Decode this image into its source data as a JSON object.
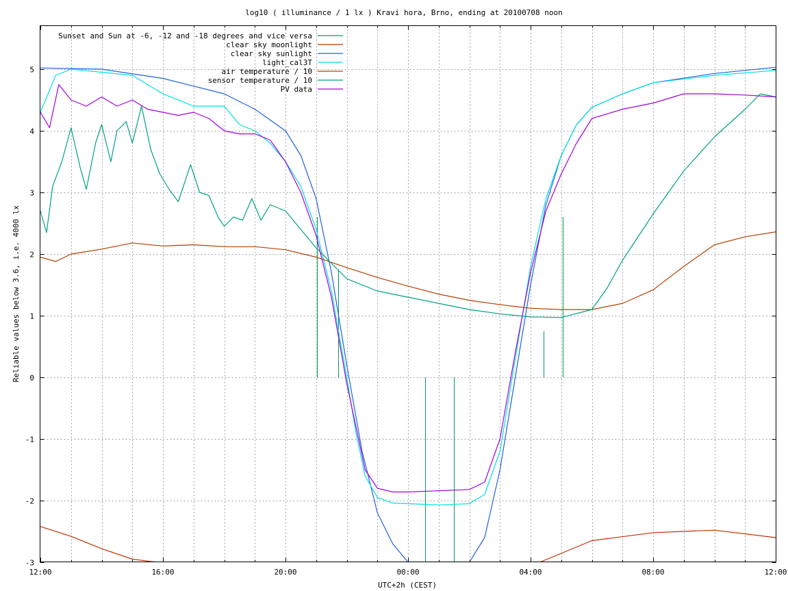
{
  "chart_data": {
    "type": "line",
    "title": "log10 ( illuminance / 1 lx ) Kravi hora, Brno, ending at 20100708 noon",
    "xlabel": "UTC+2h (CEST)",
    "ylabel": "Reliable values below 3.6, i.e. 4000 lx",
    "x_unit": "hours since 12:00 (UTC+2h)",
    "xlim": [
      0,
      24
    ],
    "ylim": [
      -3,
      5.8
    ],
    "grid": true,
    "legend_position": "top-left",
    "x_ticks": [
      {
        "value": 0,
        "label": "12:00"
      },
      {
        "value": 4,
        "label": "16:00"
      },
      {
        "value": 8,
        "label": "20:00"
      },
      {
        "value": 12,
        "label": "00:00"
      },
      {
        "value": 16,
        "label": "04:00"
      },
      {
        "value": 20,
        "label": "08:00"
      },
      {
        "value": 24,
        "label": "12:00"
      }
    ],
    "y_ticks": [
      {
        "value": -3,
        "label": "-3"
      },
      {
        "value": -2,
        "label": "-2"
      },
      {
        "value": -1,
        "label": "-1"
      },
      {
        "value": 0,
        "label": "0"
      },
      {
        "value": 1,
        "label": "1"
      },
      {
        "value": 2,
        "label": "2"
      },
      {
        "value": 3,
        "label": "3"
      },
      {
        "value": 4,
        "label": "4"
      },
      {
        "value": 5,
        "label": "5"
      }
    ],
    "series": [
      {
        "name": "Sunset and Sun at -6, -12 and -18 degrees and vice versa",
        "color": "#00a050",
        "style": "impulse",
        "x": [
          9.03,
          9.72,
          10.72,
          12.55,
          13.5,
          15.32,
          16.42,
          17.05
        ],
        "y": [
          2.6,
          1.75,
          0,
          -3,
          -3,
          0,
          0.75,
          2.6
        ]
      },
      {
        "name": "clear sky moonlight",
        "color": "#c03000",
        "x": [
          0,
          1,
          2,
          3,
          3.8,
          16.3,
          18,
          20,
          22,
          24
        ],
        "y": [
          -2.42,
          -2.58,
          -2.78,
          -2.95,
          -3,
          -3,
          -2.65,
          -2.52,
          -2.48,
          -2.6
        ]
      },
      {
        "name": "clear sky sunlight",
        "color": "#2060e0",
        "x": [
          0,
          2,
          4,
          6,
          7,
          8,
          8.5,
          9,
          9.5,
          10,
          10.5,
          11,
          11.5,
          12,
          14,
          14.5,
          15,
          15.5,
          16,
          16.5,
          17,
          17.5,
          18,
          19,
          20,
          22,
          24
        ],
        "y": [
          5.02,
          5,
          4.85,
          4.6,
          4.35,
          4.0,
          3.6,
          2.9,
          1.7,
          0.2,
          -1.2,
          -2.2,
          -2.7,
          -3,
          -3,
          -2.6,
          -1.5,
          0,
          1.5,
          2.8,
          3.6,
          4.1,
          4.38,
          4.6,
          4.78,
          4.93,
          5.03
        ]
      },
      {
        "name": "light_cal3T",
        "color": "#00e0e0",
        "x": [
          0,
          0.5,
          1,
          2,
          3,
          4,
          5,
          6,
          6.5,
          7,
          7.5,
          8,
          8.5,
          9,
          9.5,
          10,
          10.3,
          10.6,
          11,
          11.5,
          12,
          13,
          14,
          14.5,
          15,
          15.5,
          16,
          16.5,
          17,
          17.5,
          18,
          19,
          20,
          22,
          24
        ],
        "y": [
          4.3,
          4.9,
          5.0,
          4.95,
          4.9,
          4.6,
          4.4,
          4.4,
          4.1,
          4.0,
          3.8,
          3.5,
          3.1,
          2.4,
          1.4,
          0.0,
          -0.9,
          -1.6,
          -1.95,
          -2.04,
          -2.05,
          -2.07,
          -2.05,
          -1.9,
          -1.2,
          0.3,
          1.8,
          2.9,
          3.6,
          4.1,
          4.38,
          4.6,
          4.78,
          4.9,
          4.98
        ]
      },
      {
        "name": "air temperature / 10",
        "color": "#b04000",
        "x": [
          0,
          0.5,
          1,
          2,
          3,
          4,
          5,
          6,
          7,
          8,
          9,
          10,
          11,
          12,
          13,
          14,
          15,
          16,
          17,
          18,
          19,
          20,
          21,
          22,
          23,
          24
        ],
        "y": [
          1.95,
          1.88,
          2.0,
          2.08,
          2.18,
          2.13,
          2.15,
          2.12,
          2.12,
          2.07,
          1.95,
          1.78,
          1.62,
          1.48,
          1.35,
          1.25,
          1.18,
          1.12,
          1.1,
          1.1,
          1.2,
          1.42,
          1.8,
          2.15,
          2.28,
          2.36
        ]
      },
      {
        "name": "sensor temperature / 10",
        "color": "#00a080",
        "x": [
          0,
          0.2,
          0.4,
          0.7,
          1,
          1.3,
          1.5,
          1.8,
          2,
          2.3,
          2.5,
          2.8,
          3,
          3.3,
          3.6,
          3.9,
          4.2,
          4.5,
          4.9,
          5.2,
          5.5,
          5.8,
          6.0,
          6.3,
          6.6,
          6.9,
          7.2,
          7.5,
          8,
          8.5,
          9,
          9.5,
          10,
          11,
          12,
          13,
          14,
          15,
          16,
          17,
          18,
          18.5,
          19,
          20,
          21,
          22,
          23,
          23.5,
          24
        ],
        "y": [
          2.7,
          2.35,
          3.1,
          3.5,
          4.05,
          3.4,
          3.05,
          3.8,
          4.1,
          3.5,
          4.0,
          4.15,
          3.8,
          4.4,
          3.7,
          3.3,
          3.05,
          2.85,
          3.45,
          3.0,
          2.95,
          2.6,
          2.45,
          2.6,
          2.55,
          2.9,
          2.55,
          2.8,
          2.7,
          2.4,
          2.1,
          1.85,
          1.6,
          1.4,
          1.3,
          1.2,
          1.1,
          1.03,
          0.98,
          0.97,
          1.1,
          1.45,
          1.9,
          2.65,
          3.35,
          3.9,
          4.35,
          4.6,
          4.55
        ]
      },
      {
        "name": "PV data",
        "color": "#a000e0",
        "x": [
          0,
          0.3,
          0.6,
          1,
          1.5,
          2,
          2.5,
          3,
          3.5,
          4,
          4.5,
          5,
          5.5,
          6,
          6.5,
          7,
          7.5,
          8,
          8.5,
          9,
          9.5,
          10,
          10.3,
          10.6,
          11,
          11.5,
          12,
          13,
          14,
          14.5,
          15,
          15.5,
          16,
          16.5,
          17,
          17.5,
          18,
          19,
          20,
          21,
          22,
          23,
          24
        ],
        "y": [
          4.3,
          4.05,
          4.75,
          4.5,
          4.4,
          4.55,
          4.4,
          4.5,
          4.35,
          4.3,
          4.25,
          4.3,
          4.2,
          4.0,
          3.95,
          3.95,
          3.85,
          3.5,
          3.0,
          2.3,
          1.3,
          -0.1,
          -0.8,
          -1.5,
          -1.8,
          -1.86,
          -1.86,
          -1.84,
          -1.82,
          -1.7,
          -1.0,
          0.4,
          1.7,
          2.7,
          3.3,
          3.8,
          4.2,
          4.35,
          4.45,
          4.6,
          4.6,
          4.58,
          4.55
        ]
      }
    ]
  }
}
